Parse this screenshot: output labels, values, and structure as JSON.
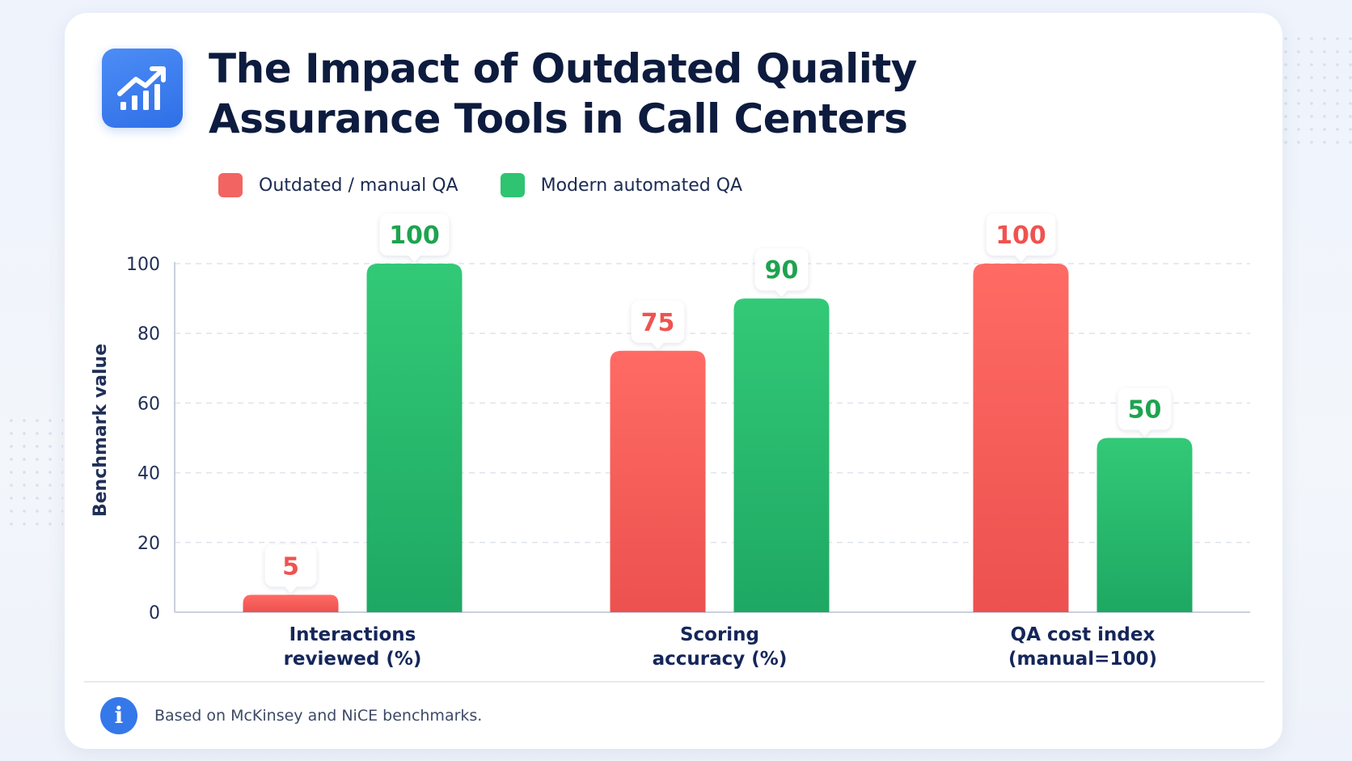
{
  "title_line1": "The Impact of Outdated Quality",
  "title_line2": "Assurance Tools in Call Centers",
  "footnote": "Based on McKinsey and NiCE benchmarks.",
  "info_icon_glyph": "i",
  "icons": {
    "logo": "bar-chart-trend-up-icon",
    "info": "info-icon"
  },
  "colors": {
    "outdated": "#f05a57",
    "modern": "#24b46a",
    "accent": "#3578ea",
    "title": "#0d1b3e"
  },
  "chart_data": {
    "type": "bar",
    "categories": [
      [
        "Interactions",
        "reviewed (%)"
      ],
      [
        "Scoring",
        "accuracy (%)"
      ],
      [
        "QA cost index",
        "(manual=100)"
      ]
    ],
    "series": [
      {
        "name": "Outdated / manual QA",
        "values": [
          5,
          75,
          100
        ],
        "color": "#f05a57"
      },
      {
        "name": "Modern automated QA",
        "values": [
          100,
          90,
          50
        ],
        "color": "#24b46a"
      }
    ],
    "xlabel": "",
    "ylabel": "Benchmark value",
    "ylim": [
      0,
      100
    ],
    "yticks": [
      0,
      20,
      40,
      60,
      80,
      100
    ],
    "grid": true,
    "legend_position": "top-left",
    "data_labels": true
  }
}
